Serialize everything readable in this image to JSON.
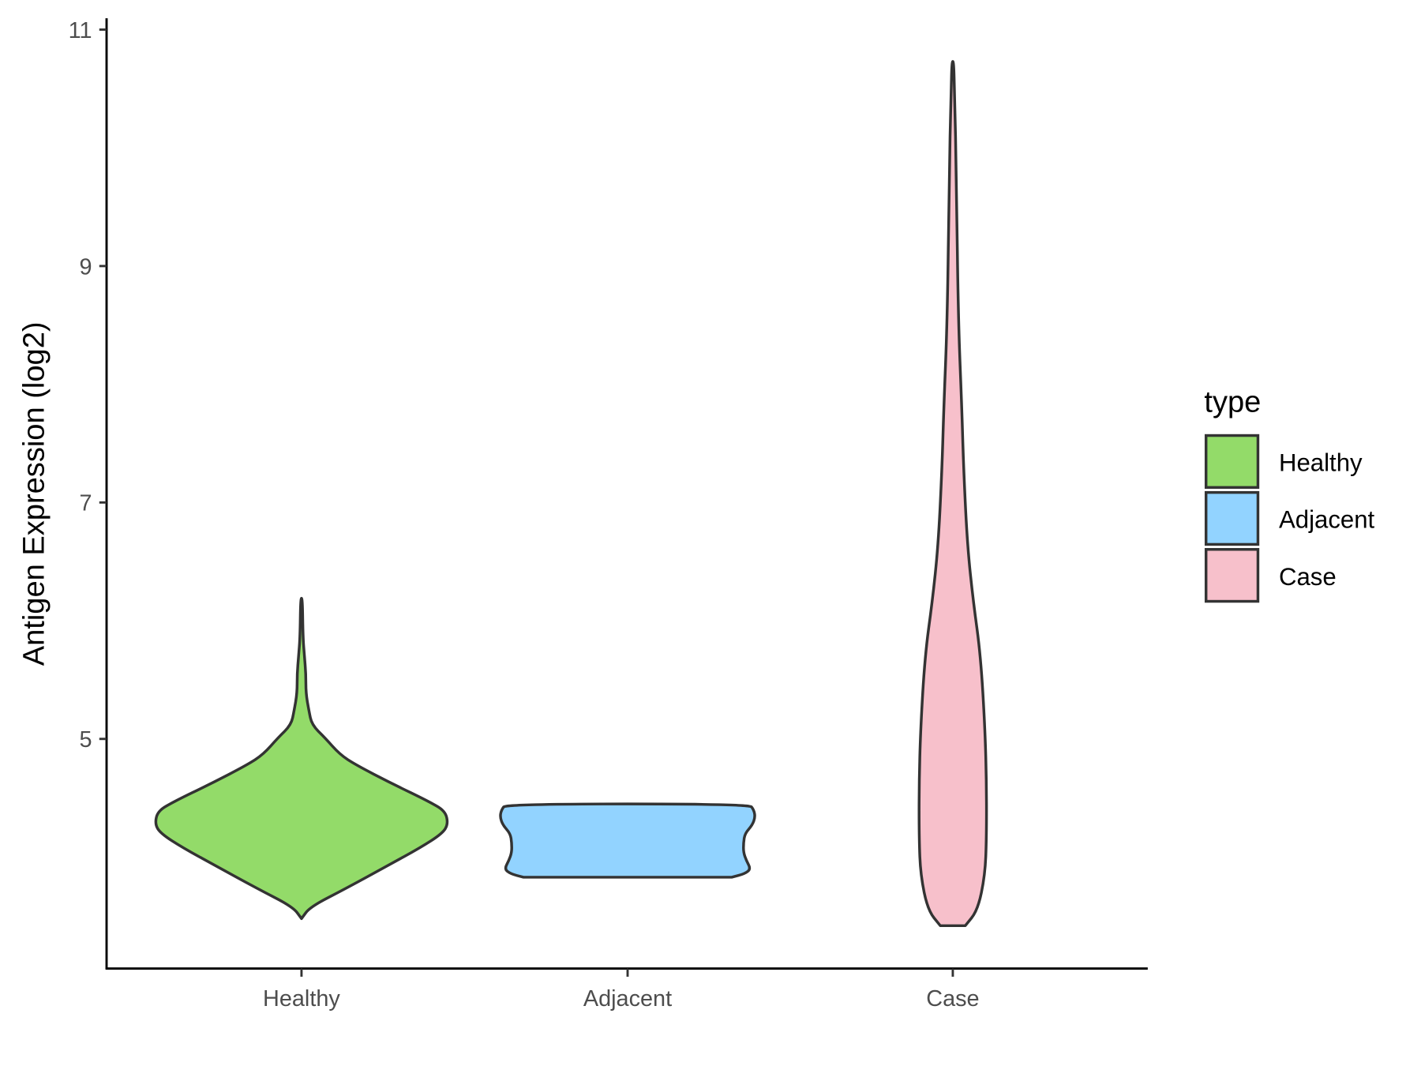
{
  "chart_data": {
    "type": "violin",
    "title": "",
    "xlabel": "",
    "ylabel": "Antigen Expression (log2)",
    "ylim": [
      3.0,
      11.0
    ],
    "yticks": [
      5,
      7,
      9,
      11
    ],
    "yticklabels": [
      "5",
      "7",
      "9",
      "11"
    ],
    "categories": [
      "Healthy",
      "Adjacent",
      "Case"
    ],
    "grid": false,
    "legend": {
      "title": "type",
      "placement": "right",
      "entries": [
        "Healthy",
        "Adjacent",
        "Case"
      ]
    },
    "colors": {
      "Healthy": "#93DB69",
      "Adjacent": "#92D3FF",
      "Case": "#F7C0CB",
      "outline": "#333333"
    },
    "series": [
      {
        "name": "Healthy",
        "min": 3.48,
        "max": 6.19,
        "profile": [
          [
            3.48,
            0
          ],
          [
            3.58,
            0.06
          ],
          [
            3.74,
            0.31
          ],
          [
            3.93,
            0.59
          ],
          [
            4.08,
            0.81
          ],
          [
            4.2,
            0.96
          ],
          [
            4.28,
            1.0
          ],
          [
            4.39,
            0.98
          ],
          [
            4.47,
            0.87
          ],
          [
            4.62,
            0.62
          ],
          [
            4.78,
            0.37
          ],
          [
            4.87,
            0.26
          ],
          [
            5.01,
            0.16
          ],
          [
            5.12,
            0.07
          ],
          [
            5.24,
            0.05
          ],
          [
            5.39,
            0.03
          ],
          [
            5.55,
            0.03
          ],
          [
            5.7,
            0.02
          ],
          [
            5.86,
            0.01
          ],
          [
            6.19,
            0.006
          ]
        ]
      },
      {
        "name": "Adjacent",
        "min": 3.83,
        "max": 4.45,
        "profile": [
          [
            3.83,
            0.71
          ],
          [
            3.86,
            0.8
          ],
          [
            3.9,
            0.84
          ],
          [
            3.97,
            0.81
          ],
          [
            4.04,
            0.79
          ],
          [
            4.12,
            0.79
          ],
          [
            4.2,
            0.8
          ],
          [
            4.27,
            0.85
          ],
          [
            4.34,
            0.87
          ],
          [
            4.4,
            0.86
          ],
          [
            4.45,
            0.83
          ]
        ]
      },
      {
        "name": "Case",
        "min": 3.42,
        "max": 10.73,
        "profile": [
          [
            3.42,
            0.085
          ],
          [
            3.55,
            0.17
          ],
          [
            3.85,
            0.22
          ],
          [
            4.16,
            0.23
          ],
          [
            4.62,
            0.23
          ],
          [
            5.08,
            0.22
          ],
          [
            5.7,
            0.19
          ],
          [
            6.16,
            0.14
          ],
          [
            6.63,
            0.1
          ],
          [
            7.24,
            0.075
          ],
          [
            7.78,
            0.062
          ],
          [
            8.55,
            0.037
          ],
          [
            9.71,
            0.025
          ],
          [
            10.48,
            0.012
          ],
          [
            10.73,
            0.006
          ]
        ]
      }
    ]
  }
}
